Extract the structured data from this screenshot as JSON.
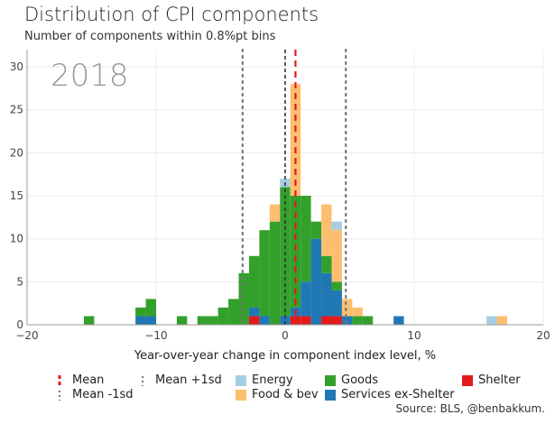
{
  "title": "Distribution of CPI components",
  "subtitle": "Number of components within 0.8%pt bins",
  "source": "Source: BLS, @benbakkum.",
  "chart_data": {
    "type": "bar",
    "stacked": true,
    "year_label": "2018",
    "xlabel": "Year-over-year change in component index level, %",
    "ylabel": "",
    "xlim": [
      -20,
      20
    ],
    "ylim": [
      0,
      32
    ],
    "xticks": [
      -20,
      -10,
      0,
      10,
      20
    ],
    "yticks": [
      0,
      5,
      10,
      15,
      20,
      25,
      30
    ],
    "grid": true,
    "bin_width": 0.8,
    "bin_starts": [
      -15.6,
      -11.6,
      -10.8,
      -8.4,
      -6.8,
      -6.0,
      -5.2,
      -4.4,
      -3.6,
      -2.8,
      -2.0,
      -1.2,
      -0.4,
      0.4,
      1.2,
      2.0,
      2.8,
      3.6,
      4.4,
      5.2,
      6.0,
      8.4,
      15.6,
      16.4
    ],
    "series": [
      {
        "name": "Shelter",
        "color": "#e31a1c",
        "values": [
          0,
          0,
          0,
          0,
          0,
          0,
          0,
          0,
          0,
          1,
          0,
          0,
          0,
          1,
          1,
          0,
          1,
          1,
          0,
          0,
          0,
          0,
          0,
          0
        ]
      },
      {
        "name": "Services ex-Shelter",
        "color": "#1f78b4",
        "values": [
          0,
          1,
          1,
          0,
          0,
          0,
          0,
          0,
          0,
          1,
          1,
          0,
          1,
          1,
          4,
          10,
          5,
          3,
          1,
          0,
          0,
          1,
          0,
          0
        ]
      },
      {
        "name": "Goods",
        "color": "#33a02c",
        "values": [
          1,
          1,
          2,
          1,
          1,
          1,
          2,
          3,
          6,
          6,
          10,
          12,
          15,
          13,
          10,
          2,
          2,
          1,
          0,
          1,
          1,
          0,
          0,
          0
        ]
      },
      {
        "name": "Food & bev",
        "color": "#fdbf6f",
        "values": [
          0,
          0,
          0,
          0,
          0,
          0,
          0,
          0,
          0,
          0,
          0,
          2,
          0,
          13,
          0,
          0,
          6,
          6,
          2,
          1,
          0,
          0,
          0,
          1
        ]
      },
      {
        "name": "Energy",
        "color": "#a6cee3",
        "values": [
          0,
          0,
          0,
          0,
          0,
          0,
          0,
          0,
          0,
          0,
          0,
          0,
          1,
          0,
          0,
          0,
          0,
          1,
          0,
          0,
          0,
          0,
          1,
          0
        ]
      }
    ],
    "reference_lines": [
      {
        "name": "Mean",
        "x": 0.8,
        "color": "#e31a1c",
        "style": "dashed"
      },
      {
        "name": "Mean +1sd",
        "x": 4.7,
        "color": "#777777",
        "style": "dotted"
      },
      {
        "name": "Mean -1sd",
        "x": -3.3,
        "color": "#777777",
        "style": "dotted"
      },
      {
        "name": "zero",
        "x": 0,
        "color": "#333333",
        "style": "dashed"
      }
    ],
    "legend_position": "bottom",
    "legend": [
      {
        "label": "Mean",
        "marker": "dashed-line",
        "color": "#e31a1c"
      },
      {
        "label": "Mean -1sd",
        "marker": "dotted-line",
        "color": "#777777"
      },
      {
        "label": "Mean +1sd",
        "marker": "dotted-line",
        "color": "#777777"
      },
      {
        "label": "Energy",
        "marker": "swatch",
        "color": "#a6cee3"
      },
      {
        "label": "Food & bev",
        "marker": "swatch",
        "color": "#fdbf6f"
      },
      {
        "label": "Goods",
        "marker": "swatch",
        "color": "#33a02c"
      },
      {
        "label": "Services ex-Shelter",
        "marker": "swatch",
        "color": "#1f78b4"
      },
      {
        "label": "Shelter",
        "marker": "swatch",
        "color": "#e31a1c"
      }
    ]
  }
}
